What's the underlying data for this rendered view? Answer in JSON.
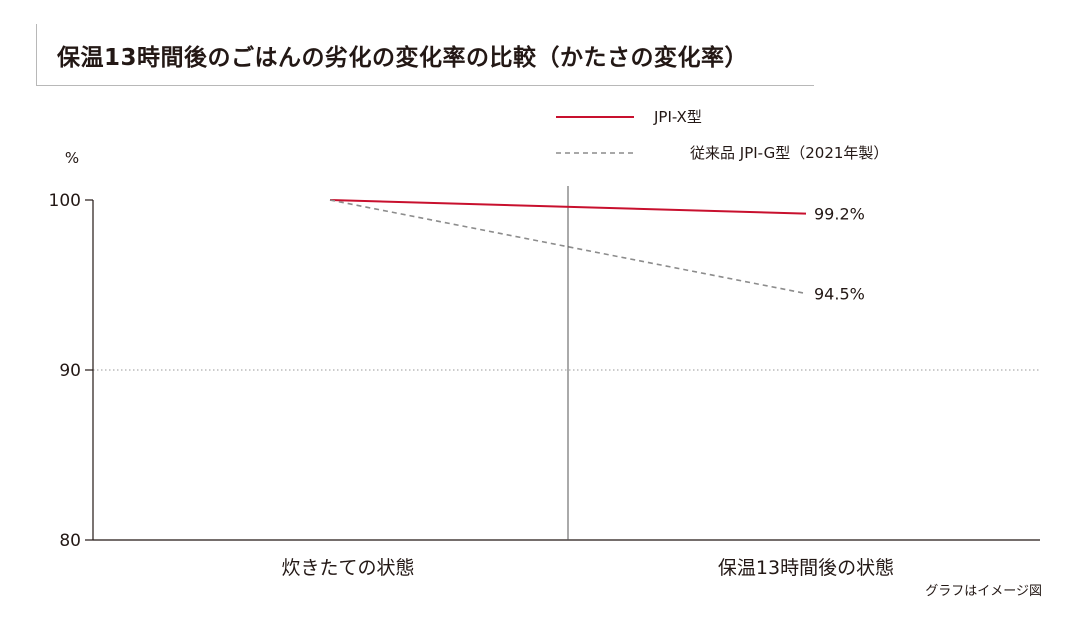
{
  "chart_data": {
    "type": "line",
    "title": "保温13時間後のごはんの劣化の変化率の比較（かたさの変化率）",
    "ylabel": "%",
    "xlabel": "",
    "categories": [
      "炊きたての状態",
      "保温13時間後の状態"
    ],
    "ylim": [
      80,
      100
    ],
    "yticks": [
      80,
      90,
      100
    ],
    "grid": "dotted line at 90",
    "legend_position": "top-right",
    "series": [
      {
        "name": "JPI-X型",
        "values": [
          100,
          99.2
        ],
        "color": "#c8102e",
        "style": "solid",
        "end_label": "99.2%"
      },
      {
        "name": "従来品 JPI-G型（2021年製）",
        "values": [
          100,
          94.5
        ],
        "color": "#8c8c8c",
        "style": "dashed",
        "end_label": "94.5%"
      }
    ],
    "note": "グラフはイメージ図"
  }
}
